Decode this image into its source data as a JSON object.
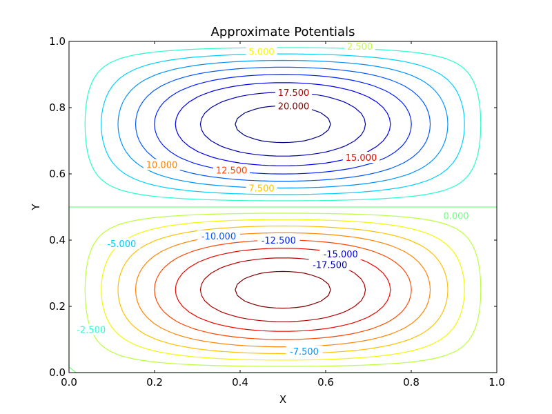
{
  "chart_data": {
    "type": "contour",
    "title": "Approximate Potentials",
    "xlabel": "X",
    "ylabel": "Y",
    "xlim": [
      0.0,
      1.0
    ],
    "ylim": [
      0.0,
      1.0
    ],
    "xticks": [
      "0.0",
      "0.2",
      "0.4",
      "0.6",
      "0.8",
      "1.0"
    ],
    "yticks": [
      "0.0",
      "0.2",
      "0.4",
      "0.6",
      "0.8",
      "1.0"
    ],
    "grid": false,
    "colormap": "jet",
    "levels": [
      -20.0,
      -17.5,
      -15.0,
      -12.5,
      -10.0,
      -7.5,
      -5.0,
      -2.5,
      0.0,
      2.5,
      5.0,
      7.5,
      10.0,
      12.5,
      15.0,
      17.5,
      20.0
    ],
    "level_colors": {
      "-20.0": "#00007f",
      "-17.5": "#0000b2",
      "-15.0": "#0000ee",
      "-12.5": "#0020ff",
      "-10.0": "#0058ff",
      "-7.5": "#0094ff",
      "-5.0": "#00d0ff",
      "-2.5": "#27ffd0",
      "0.0": "#74ff83",
      "2.5": "#bbff3b",
      "5.0": "#f4f802",
      "7.5": "#ffc100",
      "10.0": "#ff8400",
      "12.5": "#ff4700",
      "15.0": "#ec0800",
      "17.5": "#b20000",
      "20.0": "#7f0000"
    },
    "extrema": {
      "max": {
        "x": 0.5,
        "y": 0.75
      },
      "min": {
        "x": 0.5,
        "y": 0.25
      }
    },
    "contour_labels": [
      {
        "text": "2.500",
        "level": 2.5,
        "x": 0.68,
        "y": 0.985
      },
      {
        "text": "5.000",
        "level": 5.0,
        "x": 0.45,
        "y": 0.97
      },
      {
        "text": "17.500",
        "level": 17.5,
        "x": 0.525,
        "y": 0.846
      },
      {
        "text": "20.000",
        "level": 20.0,
        "x": 0.525,
        "y": 0.805
      },
      {
        "text": "10.000",
        "level": 10.0,
        "x": 0.217,
        "y": 0.628
      },
      {
        "text": "12.500",
        "level": 12.5,
        "x": 0.38,
        "y": 0.611
      },
      {
        "text": "15.000",
        "level": 15.0,
        "x": 0.683,
        "y": 0.65
      },
      {
        "text": "7.500",
        "level": 7.5,
        "x": 0.45,
        "y": 0.557
      },
      {
        "text": "0.000",
        "level": 0.0,
        "x": 0.905,
        "y": 0.474
      },
      {
        "text": "-5.000",
        "level": -5.0,
        "x": 0.123,
        "y": 0.39
      },
      {
        "text": "-10.000",
        "level": -10.0,
        "x": 0.35,
        "y": 0.413
      },
      {
        "text": "-12.500",
        "level": -12.5,
        "x": 0.49,
        "y": 0.4
      },
      {
        "text": "-15.000",
        "level": -15.0,
        "x": 0.635,
        "y": 0.358
      },
      {
        "text": "-17.500",
        "level": -17.5,
        "x": 0.61,
        "y": 0.326
      },
      {
        "text": "-7.500",
        "level": -7.5,
        "x": 0.55,
        "y": 0.065
      },
      {
        "text": "-2.500",
        "level": -2.5,
        "x": 0.052,
        "y": 0.13
      }
    ]
  }
}
